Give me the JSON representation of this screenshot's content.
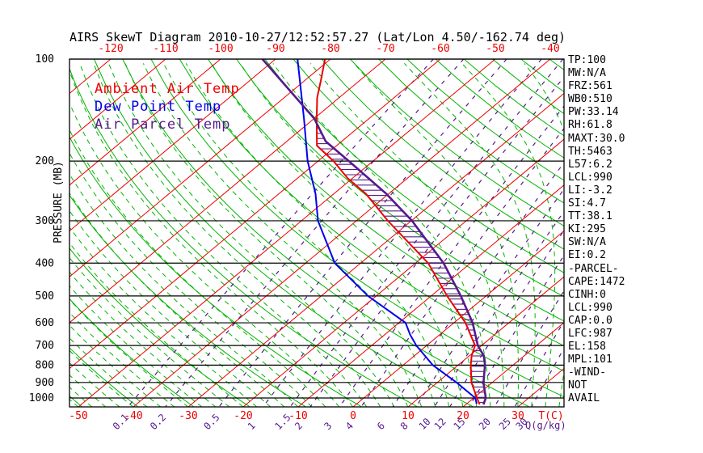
{
  "title": "AIRS SkewT Diagram 2010-10-27/12:52:57.27 (Lat/Lon 4.50/-162.74 deg)",
  "colors": {
    "isotherm_red": "#ee0000",
    "adiabat_green": "#00b400",
    "dewpoint_blue": "#0000ee",
    "parcel_purple": "#551a8b",
    "axis_black": "#000000"
  },
  "legend": [
    {
      "label": "Ambient Air Temp",
      "color": "#ee0000"
    },
    {
      "label": "Dew Point Temp",
      "color": "#0000ee"
    },
    {
      "label": "Air Parcel Temp",
      "color": "#551a8b"
    }
  ],
  "axes": {
    "top_temp_labels": [
      -120,
      -110,
      -100,
      -90,
      -80,
      -70,
      -60,
      -50,
      -40
    ],
    "bottom_temp_labels": [
      -50,
      -40,
      -30,
      -20,
      -10,
      0,
      10,
      20,
      30
    ],
    "temp_unit_label": "T(C)",
    "pressure_labels": [
      100,
      200,
      300,
      400,
      500,
      600,
      700,
      800,
      900,
      1000
    ],
    "pressure_axis_title": "PRESSURE (MB)",
    "mixing_ratio_labels": [
      0.1,
      0.2,
      0.5,
      1,
      1.5,
      2,
      3,
      4,
      6,
      8,
      10,
      12,
      15,
      20,
      25,
      30
    ],
    "mixing_ratio_unit_label": "Q(g/kg)"
  },
  "parameters": [
    "TP:100",
    "MW:N/A",
    "FRZ:561",
    "WB0:510",
    "PW:33.14",
    "RH:61.8",
    "MAXT:30.0",
    "TH:5463",
    "L57:6.2",
    "LCL:990",
    "LI:-3.2",
    "SI:4.7",
    "TT:38.1",
    "KI:295",
    "SW:N/A",
    "EI:0.2",
    "-PARCEL-",
    "CAPE:1472",
    "CINH:0",
    "LCL:990",
    "CAP:0.0",
    "LFC:987",
    "EL:158",
    "MPL:101",
    "-WIND-",
    "NOT",
    "AVAIL"
  ],
  "chart_data": {
    "type": "skewt",
    "pressure_range_mb": [
      100,
      1063
    ],
    "temp_axis_range_c": [
      -120,
      40
    ],
    "grid": {
      "isotherm_step_c": 10,
      "dry_adiabat_step_k": 10,
      "moist_adiabat_anchor_step_c": 2.5,
      "mixing_ratio_lines_g_kg": [
        0.1,
        0.2,
        0.5,
        1,
        1.5,
        2,
        3,
        4,
        6,
        8,
        10,
        12,
        15,
        20,
        25,
        30
      ]
    },
    "series": [
      {
        "name": "Ambient Air Temp",
        "color": "#ee0000",
        "width": 2,
        "points": [
          [
            100,
            -81
          ],
          [
            116,
            -77
          ],
          [
            130,
            -74
          ],
          [
            150,
            -69.5
          ],
          [
            180,
            -63.6
          ],
          [
            200,
            -57.2
          ],
          [
            225,
            -50.8
          ],
          [
            250,
            -44.1
          ],
          [
            300,
            -34.3
          ],
          [
            400,
            -17.7
          ],
          [
            500,
            -7.1
          ],
          [
            600,
            2.1
          ],
          [
            700,
            8.8
          ],
          [
            750,
            10.4
          ],
          [
            800,
            12.3
          ],
          [
            900,
            16.2
          ],
          [
            1000,
            20.6
          ],
          [
            1045,
            22.5
          ]
        ]
      },
      {
        "name": "Dew Point Temp",
        "color": "#0000ee",
        "width": 2,
        "points": [
          [
            100,
            -86
          ],
          [
            150,
            -71.8
          ],
          [
            200,
            -61.9
          ],
          [
            250,
            -53.3
          ],
          [
            300,
            -47
          ],
          [
            400,
            -34.7
          ],
          [
            500,
            -21.5
          ],
          [
            600,
            -8.8
          ],
          [
            650,
            -5.4
          ],
          [
            700,
            -1.9
          ],
          [
            800,
            5.4
          ],
          [
            900,
            13.5
          ],
          [
            1000,
            20.3
          ],
          [
            1040,
            21.8
          ]
        ]
      },
      {
        "name": "Air Parcel Temp",
        "color": "#551a8b",
        "width": 2.6,
        "points": [
          [
            100,
            -92.4
          ],
          [
            150,
            -69.9
          ],
          [
            175,
            -62.9
          ],
          [
            200,
            -54.4
          ],
          [
            250,
            -40.4
          ],
          [
            300,
            -29.9
          ],
          [
            400,
            -14.9
          ],
          [
            500,
            -4.6
          ],
          [
            600,
            3.4
          ],
          [
            700,
            9.3
          ],
          [
            750,
            12.6
          ],
          [
            800,
            14.9
          ],
          [
            900,
            18.4
          ],
          [
            1000,
            22.2
          ],
          [
            1045,
            23.2
          ]
        ]
      }
    ],
    "hatched_area": "between ambient temperature and air parcel temperature curves (CAPE region)"
  }
}
